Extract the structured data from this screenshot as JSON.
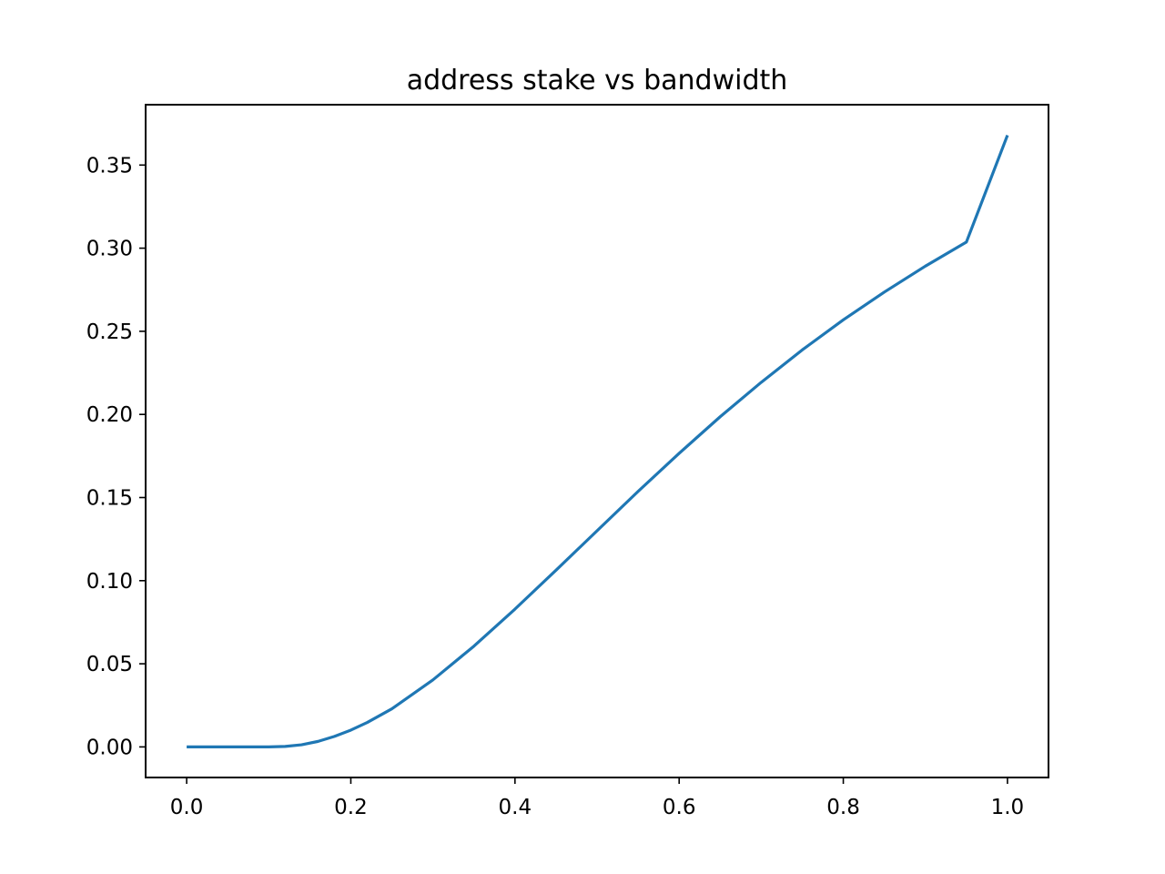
{
  "chart_data": {
    "type": "line",
    "title": "address stake vs bandwidth",
    "xlabel": "",
    "ylabel": "",
    "xlim": [
      -0.05,
      1.05
    ],
    "ylim": [
      -0.0184,
      0.3863
    ],
    "xticks": [
      0.0,
      0.2,
      0.4,
      0.6,
      0.8,
      1.0
    ],
    "xtick_labels": [
      "0.0",
      "0.2",
      "0.4",
      "0.6",
      "0.8",
      "1.0"
    ],
    "yticks": [
      0.0,
      0.05,
      0.1,
      0.15,
      0.2,
      0.25,
      0.3,
      0.35
    ],
    "ytick_labels": [
      "0.00",
      "0.05",
      "0.10",
      "0.15",
      "0.20",
      "0.25",
      "0.30",
      "0.35"
    ],
    "grid": false,
    "legend": "none",
    "series": [
      {
        "color": "#1f77b4",
        "x": [
          0.0,
          0.05,
          0.1,
          0.12,
          0.14,
          0.16,
          0.18,
          0.2,
          0.22,
          0.25,
          0.3,
          0.35,
          0.4,
          0.45,
          0.5,
          0.55,
          0.6,
          0.65,
          0.7,
          0.75,
          0.8,
          0.85,
          0.9,
          0.95,
          1.0
        ],
        "y": [
          0.0,
          0.0,
          0.0,
          0.0003,
          0.0013,
          0.0033,
          0.0063,
          0.0101,
          0.0147,
          0.0229,
          0.0403,
          0.0606,
          0.0829,
          0.1063,
          0.13,
          0.1537,
          0.1766,
          0.1986,
          0.2193,
          0.2388,
          0.2569,
          0.2736,
          0.2892,
          0.3037,
          0.3679
        ]
      }
    ]
  }
}
